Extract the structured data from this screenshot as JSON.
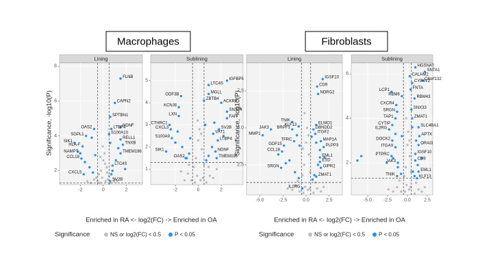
{
  "figures": [
    {
      "title": "Macrophages",
      "xlabel": "Enriched in RA <- log2(FC) -> Enriched in OA",
      "ylabel": "Significance, -log10(P)",
      "legend_title": "Significance"
    },
    {
      "title": "Fibroblasts",
      "xlabel": "Enriched in RA <- log2(FC) -> Enriched in OA",
      "ylabel": "Significance, -log10(P)",
      "legend_title": "Significance"
    }
  ],
  "chart_data": [
    {
      "type": "scatter",
      "title": "Lining",
      "xlim": [
        -3.8,
        3.4
      ],
      "ylim": [
        1.2,
        8.2
      ],
      "xticks": [
        -2,
        0,
        2
      ],
      "yticks": [
        2,
        4,
        6,
        8
      ],
      "hlines": [
        1.3
      ],
      "vlines": [
        -0.5,
        0.5
      ],
      "series": [
        {
          "name": "NS or log2(FC) < 0.5",
          "color": "#bdbdbd",
          "x": [
            -0.3,
            0.2,
            -0.1,
            0.4,
            -0.5,
            0.6,
            -0.8,
            0.9,
            -1.1,
            1.2,
            -0.2,
            0.3,
            0.0,
            -0.4,
            0.5,
            -0.6,
            0.1,
            -1.4,
            1.0,
            -0.9,
            0.15,
            -0.25,
            0.35,
            -0.05
          ],
          "values": [
            1.3,
            1.4,
            1.6,
            1.5,
            1.4,
            1.3,
            1.5,
            1.4,
            1.3,
            1.4,
            2.0,
            2.2,
            2.6,
            1.8,
            1.7,
            1.6,
            3.0,
            1.4,
            1.5,
            1.9,
            2.4,
            2.8,
            1.9,
            3.4
          ]
        },
        {
          "name": "P < 0.05",
          "color": "#1e90ff",
          "x": [
            -1.2,
            -1.6,
            -0.9,
            -2.2,
            0.8,
            1.1,
            0.7,
            1.3,
            -0.7,
            0.6,
            -1.0,
            1.9
          ],
          "values": [
            2.2,
            2.5,
            1.9,
            3.1,
            2.0,
            2.6,
            1.8,
            3.3,
            2.9,
            3.6,
            3.9,
            2.1
          ]
        }
      ],
      "labels": [
        {
          "text": "FLNB",
          "x": 1.5,
          "y": 7.3
        },
        {
          "text": "CAPN2",
          "x": 1.0,
          "y": 5.9
        },
        {
          "text": "SPTBN1",
          "x": 0.6,
          "y": 5.1
        },
        {
          "text": "NDNF",
          "x": 1.5,
          "y": 4.5
        },
        {
          "text": "LTBP4",
          "x": 0.7,
          "y": 4.4
        },
        {
          "text": "S100A10",
          "x": 0.5,
          "y": 4.1
        },
        {
          "text": "RELL1",
          "x": 1.5,
          "y": 3.8
        },
        {
          "text": "TNXB",
          "x": 1.7,
          "y": 3.5
        },
        {
          "text": "OAS2",
          "x": -0.8,
          "y": 4.4
        },
        {
          "text": "SGPL1",
          "x": -1.5,
          "y": 4.0
        },
        {
          "text": "SIK1",
          "x": -2.5,
          "y": 3.6
        },
        {
          "text": "HLA-F",
          "x": -1.8,
          "y": 3.4
        },
        {
          "text": "NAMPT",
          "x": -2.0,
          "y": 3.0
        },
        {
          "text": "CCL18",
          "x": -1.9,
          "y": 2.7
        },
        {
          "text": "CXCL5",
          "x": -1.7,
          "y": 1.8
        },
        {
          "text": "SV2B",
          "x": 0.6,
          "y": 1.4
        },
        {
          "text": "TMEM196",
          "x": 1.5,
          "y": 3.0
        },
        {
          "text": "LTC4S",
          "x": 0.8,
          "y": 2.3
        }
      ]
    },
    {
      "type": "scatter",
      "title": "Sublining",
      "xlim": [
        -4.15,
        3.9
      ],
      "ylim": [
        0.3,
        5.8
      ],
      "xticks": [
        -2,
        0,
        2
      ],
      "yticks": [
        1,
        2,
        3,
        4,
        5
      ],
      "hlines": [
        1.3
      ],
      "vlines": [
        -0.5,
        0.5
      ],
      "series": [
        {
          "name": "NS or log2(FC) < 0.5",
          "color": "#bdbdbd",
          "x": [
            -0.3,
            0.2,
            -0.1,
            0.4,
            -0.6,
            0.7,
            -0.9,
            1.0,
            -1.2,
            1.3,
            -0.2,
            0.3,
            0.0,
            -0.4,
            0.5,
            -1.5,
            1.6,
            -0.8,
            0.9,
            0.1,
            -0.05,
            0.25
          ],
          "values": [
            0.4,
            0.5,
            0.7,
            0.6,
            0.5,
            0.4,
            0.8,
            0.7,
            0.5,
            0.6,
            1.5,
            1.9,
            2.3,
            1.1,
            1.2,
            0.9,
            1.0,
            1.2,
            1.1,
            2.8,
            3.2,
            2.6
          ]
        },
        {
          "name": "P < 0.05",
          "color": "#1e90ff",
          "x": [
            -1.1,
            -1.4,
            -0.8,
            -2.0,
            0.9,
            1.2,
            0.7,
            2.2,
            -0.7,
            0.6,
            -1.8,
            1.4
          ],
          "values": [
            1.5,
            2.0,
            1.7,
            2.2,
            1.6,
            2.0,
            1.4,
            2.5,
            2.4,
            3.0,
            2.7,
            3.1
          ]
        }
      ],
      "labels": [
        {
          "text": "IGFBP5",
          "x": 2.5,
          "y": 5.0
        },
        {
          "text": "LTC4S",
          "x": 0.9,
          "y": 4.8
        },
        {
          "text": "MGLL",
          "x": 0.9,
          "y": 4.4
        },
        {
          "text": "ZBTB4",
          "x": 0.5,
          "y": 4.1
        },
        {
          "text": "ACKR3",
          "x": 2.0,
          "y": 4.0
        },
        {
          "text": "SNX24",
          "x": 2.5,
          "y": 3.6
        },
        {
          "text": "ODF3B",
          "x": -1.5,
          "y": 4.3
        },
        {
          "text": "KCNJ8",
          "x": -1.7,
          "y": 3.8
        },
        {
          "text": "LXN",
          "x": -1.7,
          "y": 3.4
        },
        {
          "text": "CTHRC1",
          "x": -2.5,
          "y": 3.0
        },
        {
          "text": "CXCL3",
          "x": -2.4,
          "y": 2.8
        },
        {
          "text": "S100A9",
          "x": -2.3,
          "y": 2.4
        },
        {
          "text": "SIK1",
          "x": -2.8,
          "y": 1.8
        },
        {
          "text": "OAS2",
          "x": -1.0,
          "y": 1.5
        },
        {
          "text": "SV2B",
          "x": 1.8,
          "y": 2.8
        },
        {
          "text": "NDNF",
          "x": 1.5,
          "y": 1.8
        },
        {
          "text": "LTBP4",
          "x": 1.7,
          "y": 2.3
        },
        {
          "text": "TMEM196",
          "x": 1.6,
          "y": 1.5
        },
        {
          "text": "FAH",
          "x": 2.5,
          "y": 3.3
        },
        {
          "text": "VAT1",
          "x": 1.3,
          "y": 2.6
        }
      ]
    },
    {
      "type": "scatter",
      "title": "Lining",
      "xlim": [
        -6.45,
        3.93
      ],
      "ylim": [
        0.46,
        9.4
      ],
      "xticks": [
        {
          "value": -5,
          "label": "-5.0"
        },
        {
          "value": -2.5,
          "label": "-2.5"
        },
        {
          "value": 0,
          "label": "0.0"
        },
        {
          "value": 2.5,
          "label": "2.5"
        }
      ],
      "yticks": [
        {
          "value": 2.5,
          "label": "2.5"
        },
        {
          "value": 5,
          "label": "5.0"
        },
        {
          "value": 7.5,
          "label": "7.5"
        }
      ],
      "hlines": [
        1.3
      ],
      "vlines": [
        -0.5,
        0.5
      ],
      "series": [
        {
          "name": "NS or log2(FC) < 0.5",
          "color": "#bdbdbd",
          "x": [
            -0.3,
            0.2,
            -0.1,
            0.4,
            -0.7,
            0.8,
            -1.1,
            1.2,
            -1.5,
            1.6,
            -0.2,
            0.3,
            0.0,
            -0.4,
            0.45,
            -2.0,
            1.9,
            -0.9,
            1.0,
            0.1,
            -0.15,
            0.25,
            -0.35
          ],
          "values": [
            0.6,
            0.8,
            1.0,
            0.9,
            0.7,
            0.6,
            1.1,
            0.9,
            0.8,
            0.7,
            2.5,
            3.2,
            4.0,
            1.8,
            2.0,
            0.9,
            1.0,
            1.4,
            1.3,
            5.0,
            6.0,
            4.5,
            3.6
          ]
        },
        {
          "name": "P < 0.05",
          "color": "#1e90ff",
          "x": [
            -1.2,
            -1.8,
            -0.8,
            -3.0,
            0.9,
            1.3,
            0.7,
            2.0,
            -0.7,
            0.6,
            -2.2,
            1.5,
            -1.0,
            1.1
          ],
          "values": [
            2.0,
            2.8,
            1.6,
            3.2,
            1.8,
            2.5,
            1.5,
            3.0,
            3.8,
            4.4,
            2.6,
            3.5,
            4.5,
            4.0
          ]
        }
      ],
      "labels": [
        {
          "text": "IGSF10",
          "x": 1.8,
          "y": 8.3
        },
        {
          "text": "CD9",
          "x": 1.2,
          "y": 7.8
        },
        {
          "text": "NDRG2",
          "x": 1.3,
          "y": 7.3
        },
        {
          "text": "TNIK",
          "x": -1.5,
          "y": 5.4
        },
        {
          "text": "KLF13",
          "x": -0.8,
          "y": 5.1
        },
        {
          "text": "ELMO1",
          "x": 1.1,
          "y": 5.2
        },
        {
          "text": "JAK3",
          "x": -3.8,
          "y": 4.9
        },
        {
          "text": "MMP1",
          "x": -4.7,
          "y": 4.5
        },
        {
          "text": "BRPF3",
          "x": -1.5,
          "y": 4.9
        },
        {
          "text": "DBNDD2",
          "x": 0.8,
          "y": 4.9
        },
        {
          "text": "ITGF2",
          "x": 1.0,
          "y": 4.6
        },
        {
          "text": "MAP1A",
          "x": 1.6,
          "y": 4.1
        },
        {
          "text": "TFRC",
          "x": -1.3,
          "y": 4.1
        },
        {
          "text": "GDF15",
          "x": -2.4,
          "y": 3.8
        },
        {
          "text": "CCL18",
          "x": -2.6,
          "y": 3.4
        },
        {
          "text": "SRGN",
          "x": -2.7,
          "y": 2.3
        },
        {
          "text": "EML1",
          "x": 1.5,
          "y": 3.0
        },
        {
          "text": "ESD",
          "x": 1.5,
          "y": 2.7
        },
        {
          "text": "GIPR2",
          "x": 1.6,
          "y": 2.3
        },
        {
          "text": "ZMAT1",
          "x": 1.1,
          "y": 1.7
        },
        {
          "text": "IL2RG",
          "x": -0.4,
          "y": 0.9
        },
        {
          "text": "PLPP3",
          "x": 1.9,
          "y": 3.7
        }
      ]
    },
    {
      "type": "scatter",
      "title": "Sublining",
      "xlim": [
        -7.07,
        3.19
      ],
      "ylim": [
        0.55,
        6.5
      ],
      "xticks": [
        {
          "value": -5,
          "label": "-5.0"
        },
        {
          "value": -2.5,
          "label": "-2.5"
        },
        {
          "value": 0,
          "label": "0.0"
        },
        {
          "value": 2.5,
          "label": "2.5"
        }
      ],
      "yticks": [
        2,
        4,
        6
      ],
      "hlines": [
        1.3
      ],
      "vlines": [
        -0.5,
        0.5
      ],
      "series": [
        {
          "name": "NS or log2(FC) < 0.5",
          "color": "#bdbdbd",
          "x": [
            -0.3,
            0.2,
            -0.1,
            0.4,
            -0.8,
            0.9,
            -1.3,
            1.4,
            -1.8,
            1.8,
            -0.2,
            0.3,
            0.0,
            -0.4,
            0.45,
            -2.4,
            2.2,
            -1.0,
            1.1,
            0.1,
            -0.15,
            0.25
          ],
          "values": [
            0.7,
            0.8,
            1.0,
            0.9,
            0.7,
            0.6,
            0.9,
            0.8,
            0.7,
            0.7,
            1.8,
            2.3,
            2.8,
            1.4,
            1.6,
            0.8,
            0.9,
            1.2,
            1.1,
            3.4,
            4.0,
            3.0
          ]
        },
        {
          "name": "P < 0.05",
          "color": "#1e90ff",
          "x": [
            -5.8,
            -6.3,
            -1.2,
            -1.8,
            -0.8,
            -2.6,
            0.9,
            1.3,
            0.7,
            1.8,
            -0.7,
            0.6,
            1.1,
            -1.5
          ],
          "values": [
            2.3,
            2.1,
            1.8,
            2.2,
            1.5,
            2.0,
            1.4,
            1.9,
            1.6,
            2.2,
            3.2,
            3.6,
            3.0,
            3.3
          ]
        }
      ],
      "labels": [
        {
          "text": "HGSNAT",
          "x": 1.0,
          "y": 6.3
        },
        {
          "text": "SNTA1",
          "x": 2.2,
          "y": 6.1
        },
        {
          "text": "CALHM2",
          "x": 0.3,
          "y": 5.9
        },
        {
          "text": "C6orf132",
          "x": 1.9,
          "y": 5.7
        },
        {
          "text": "CYP4V2",
          "x": 0.6,
          "y": 5.6
        },
        {
          "text": "FNTA",
          "x": 0.4,
          "y": 5.3
        },
        {
          "text": "LCP1",
          "x": -2.0,
          "y": 5.2
        },
        {
          "text": "RBM6",
          "x": -0.7,
          "y": 5.0
        },
        {
          "text": "RBM43",
          "x": 0.9,
          "y": 4.9
        },
        {
          "text": "CXCR4",
          "x": -1.4,
          "y": 4.6
        },
        {
          "text": "SRGN",
          "x": -1.3,
          "y": 4.3
        },
        {
          "text": "SNX33",
          "x": 0.5,
          "y": 4.4
        },
        {
          "text": "ZMAT1",
          "x": 0.6,
          "y": 4.0
        },
        {
          "text": "TAP1",
          "x": -1.5,
          "y": 4.0
        },
        {
          "text": "CYTIP",
          "x": -1.9,
          "y": 3.7
        },
        {
          "text": "SLC4BA1",
          "x": 1.4,
          "y": 3.6
        },
        {
          "text": "APTX",
          "x": 1.5,
          "y": 3.2
        },
        {
          "text": "IL2RG",
          "x": -2.3,
          "y": 3.5
        },
        {
          "text": "DOCK2",
          "x": -1.9,
          "y": 3.0
        },
        {
          "text": "ITGAX",
          "x": -1.5,
          "y": 2.7
        },
        {
          "text": "PTPRC",
          "x": -2.0,
          "y": 2.3
        },
        {
          "text": "JAK3",
          "x": -1.2,
          "y": 2.0
        },
        {
          "text": "TNIK",
          "x": -1.3,
          "y": 1.4
        },
        {
          "text": "IGSF10",
          "x": 1.0,
          "y": 2.4
        },
        {
          "text": "CD9",
          "x": 1.0,
          "y": 2.1
        },
        {
          "text": "KLF13",
          "x": 1.2,
          "y": 1.3
        },
        {
          "text": "EML1",
          "x": 1.4,
          "y": 1.6
        },
        {
          "text": "ORAI3",
          "x": 1.4,
          "y": 2.8
        }
      ]
    }
  ]
}
